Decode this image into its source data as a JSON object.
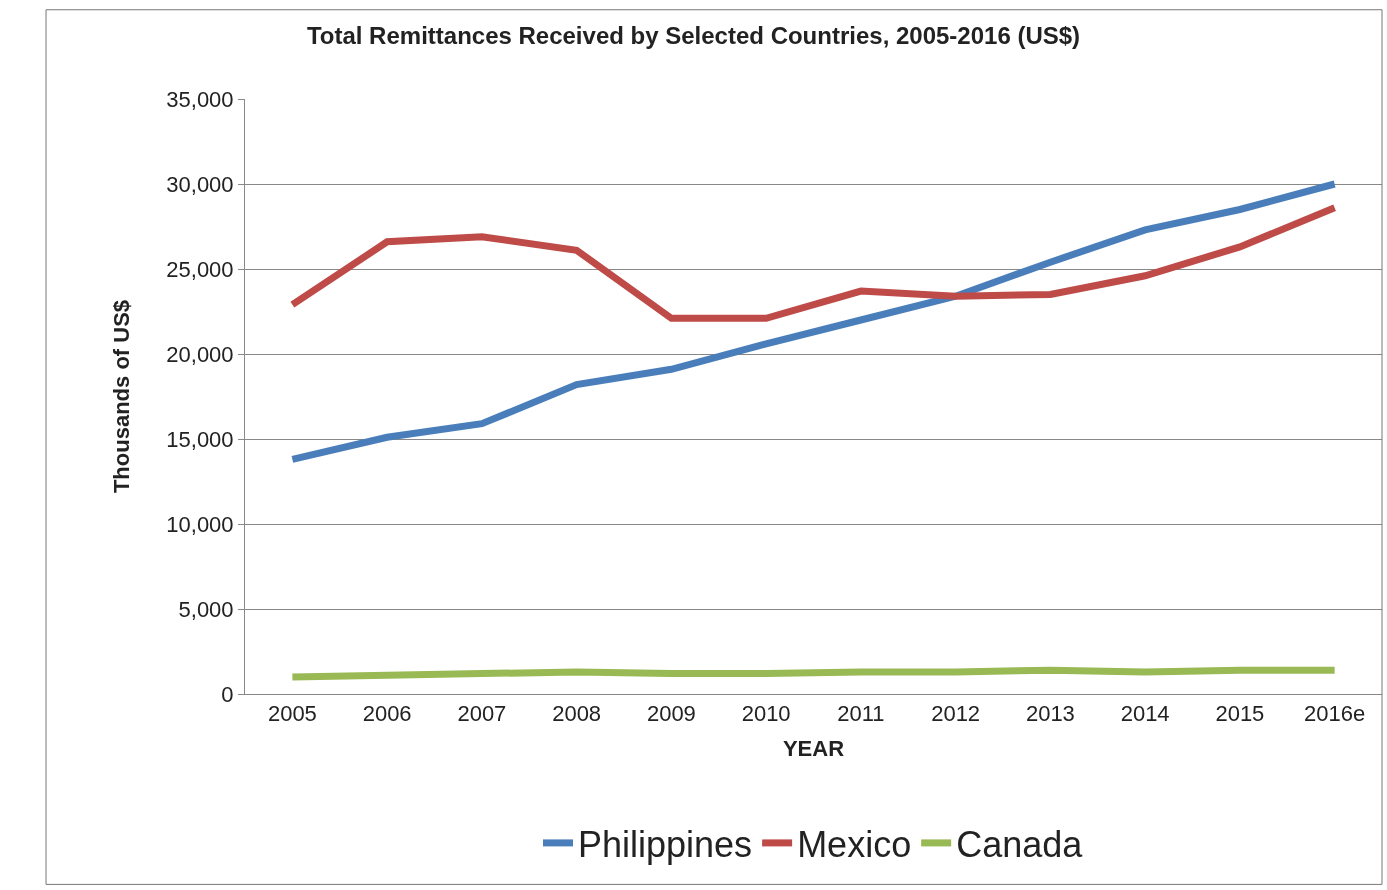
{
  "chart_data": {
    "type": "line",
    "title": "Total Remittances Received by Selected Countries, 2005-2016 (US$)",
    "xlabel": "YEAR",
    "ylabel": "Thousands of US$",
    "categories": [
      "2005",
      "2006",
      "2007",
      "2008",
      "2009",
      "2010",
      "2011",
      "2012",
      "2013",
      "2014",
      "2015",
      "2016e"
    ],
    "series": [
      {
        "name": "Philippines",
        "color": "#4a7ebb",
        "values": [
          13800,
          15100,
          15900,
          18200,
          19100,
          20600,
          22000,
          23400,
          25400,
          27300,
          28500,
          30000
        ]
      },
      {
        "name": "Mexico",
        "color": "#be4b48",
        "values": [
          22900,
          26600,
          26900,
          26100,
          22100,
          22100,
          23700,
          23400,
          23500,
          24600,
          26300,
          28600
        ]
      },
      {
        "name": "Canada",
        "color": "#98b954",
        "values": [
          1000,
          1100,
          1200,
          1300,
          1200,
          1200,
          1300,
          1300,
          1400,
          1300,
          1400,
          1400
        ]
      }
    ],
    "ylim": [
      0,
      35000
    ],
    "yticks": [
      {
        "value": 0,
        "label": "0"
      },
      {
        "value": 5000,
        "label": "5,000"
      },
      {
        "value": 10000,
        "label": "10,000"
      },
      {
        "value": 15000,
        "label": "15,000"
      },
      {
        "value": 20000,
        "label": "20,000"
      },
      {
        "value": 25000,
        "label": "25,000"
      },
      {
        "value": 30000,
        "label": "30,000"
      },
      {
        "value": 35000,
        "label": "35,000"
      }
    ],
    "grid": "y",
    "legend": "bottom",
    "marker": "none",
    "line_style": "solid"
  }
}
